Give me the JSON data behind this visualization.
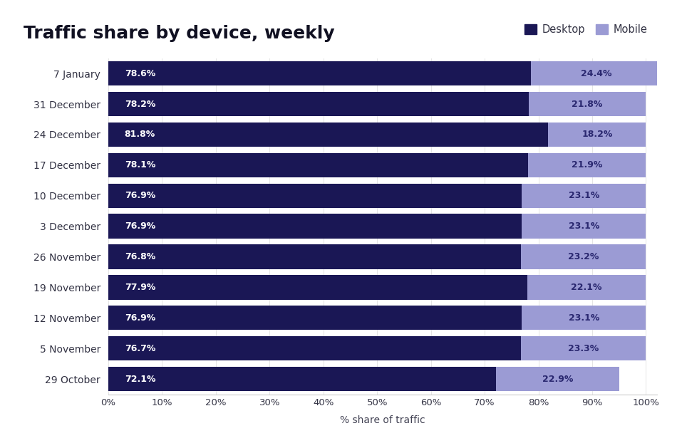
{
  "title": "Traffic share by device, weekly",
  "xlabel": "% share of traffic",
  "categories": [
    "7 January",
    "31 December",
    "24 December",
    "17 December",
    "10 December",
    "3 December",
    "26 November",
    "19 November",
    "12 November",
    "5 November",
    "29 October"
  ],
  "desktop": [
    78.6,
    78.2,
    81.8,
    78.1,
    76.9,
    76.9,
    76.8,
    77.9,
    76.9,
    76.7,
    72.1
  ],
  "mobile": [
    24.4,
    21.8,
    18.2,
    21.9,
    23.1,
    23.1,
    23.2,
    22.1,
    23.1,
    23.3,
    22.9
  ],
  "desktop_color": "#1a1755",
  "mobile_color": "#9b9bd4",
  "background_color": "#ffffff",
  "desktop_text_color": "#ffffff",
  "mobile_text_color": "#2a2870",
  "title_fontsize": 18,
  "label_fontsize": 10,
  "tick_fontsize": 9.5,
  "ytick_fontsize": 10,
  "legend_labels": [
    "Desktop",
    "Mobile"
  ],
  "xlim": [
    0,
    102
  ],
  "xticks": [
    0,
    10,
    20,
    30,
    40,
    50,
    60,
    70,
    80,
    90,
    100
  ],
  "xtick_labels": [
    "0%",
    "10%",
    "20%",
    "30%",
    "40%",
    "50%",
    "60%",
    "70%",
    "80%",
    "90%",
    "100%"
  ]
}
